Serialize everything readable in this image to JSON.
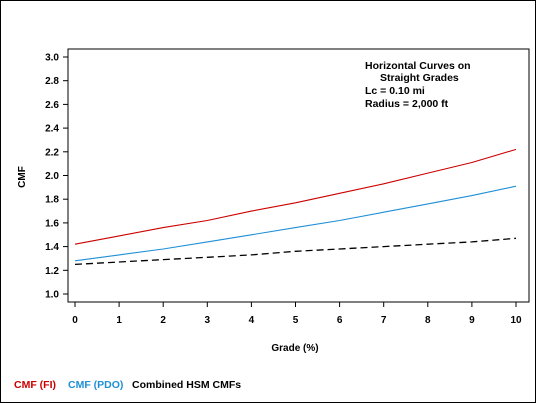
{
  "chart_data": {
    "type": "line",
    "title": "",
    "xlabel": "Grade (%)",
    "ylabel": "CMF",
    "xlim": [
      0,
      10
    ],
    "ylim": [
      1.0,
      3.0
    ],
    "x": [
      0,
      1,
      2,
      3,
      4,
      5,
      6,
      7,
      8,
      9,
      10
    ],
    "x_ticks": [
      "0",
      "1",
      "2",
      "3",
      "4",
      "5",
      "6",
      "7",
      "8",
      "9",
      "10"
    ],
    "y_ticks": [
      "1.0",
      "1.2",
      "1.4",
      "1.6",
      "1.8",
      "2.0",
      "2.2",
      "2.4",
      "2.6",
      "2.8",
      "3.0"
    ],
    "grid": false,
    "legend_position": "bottom-left",
    "annotations": [
      "Horizontal Curves on",
      "Straight Grades",
      "Lc = 0.10 mi",
      "Radius = 2,000 ft"
    ],
    "series": [
      {
        "name": "CMF (FI)",
        "color": "#cc0000",
        "dash": "solid",
        "values": [
          1.42,
          1.49,
          1.56,
          1.62,
          1.7,
          1.77,
          1.85,
          1.93,
          2.02,
          2.11,
          2.22
        ]
      },
      {
        "name": "CMF (PDO)",
        "color": "#1f8fd6",
        "dash": "solid",
        "values": [
          1.28,
          1.33,
          1.38,
          1.44,
          1.5,
          1.56,
          1.62,
          1.69,
          1.76,
          1.83,
          1.91
        ]
      },
      {
        "name": "Combined HSM CMFs",
        "color": "#000000",
        "dash": "dashed",
        "values": [
          1.25,
          1.27,
          1.29,
          1.31,
          1.33,
          1.36,
          1.38,
          1.4,
          1.42,
          1.44,
          1.47
        ]
      }
    ]
  }
}
